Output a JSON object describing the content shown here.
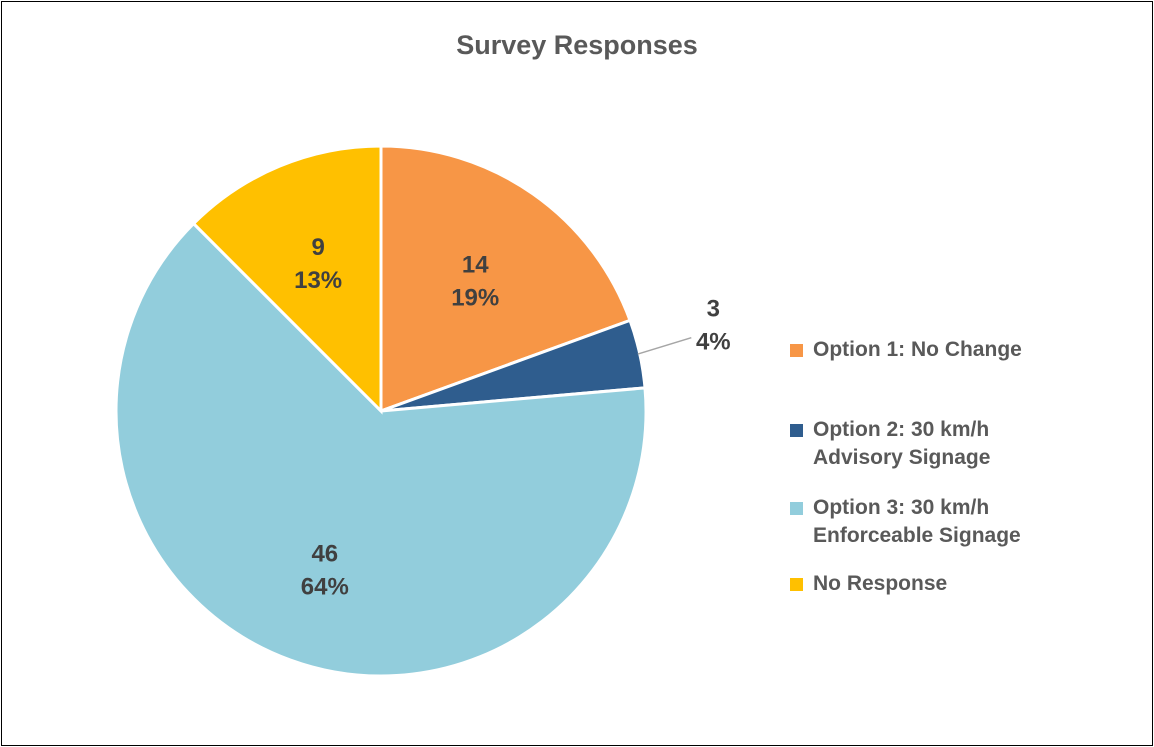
{
  "chart_data": {
    "type": "pie",
    "title": "Survey Responses",
    "categories": [
      "Option 1: No Change",
      "Option 2: 30 km/h Advisory Signage",
      "Option 3: 30 km/h Enforceable Signage",
      "No Response"
    ],
    "values": [
      14,
      3,
      46,
      9
    ],
    "percent_labels": [
      "19%",
      "4%",
      "64%",
      "13%"
    ],
    "value_labels": [
      "14",
      "3",
      "46",
      "9"
    ],
    "colors": [
      "#F79646",
      "#2F5D8E",
      "#92CDDC",
      "#FFC000"
    ],
    "legend": "right",
    "start_angle_deg": 0,
    "direction": "clockwise"
  },
  "legend_items": [
    {
      "label": "Option 1: No Change",
      "color": "#F79646"
    },
    {
      "label": "Option 2: 30 km/h Advisory Signage",
      "color": "#2F5D8E"
    },
    {
      "label": "Option 3: 30 km/h Enforceable Signage",
      "color": "#92CDDC"
    },
    {
      "label": "No Response",
      "color": "#FFC000"
    }
  ]
}
